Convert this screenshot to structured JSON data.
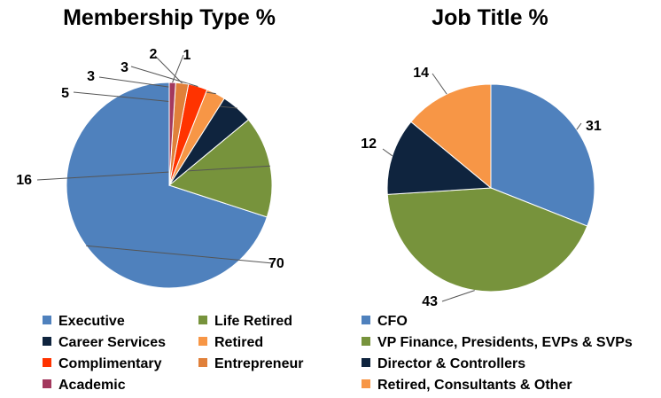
{
  "chart_data": [
    {
      "type": "pie",
      "title": "Membership Type %",
      "categories": [
        "Executive",
        "Life Retired",
        "Career Services",
        "Retired",
        "Complimentary",
        "Entrepreneur",
        "Academic"
      ],
      "values": [
        70,
        16,
        5,
        3,
        3,
        2,
        1
      ],
      "colors": [
        "#4F81BD",
        "#77933C",
        "#0F243E",
        "#F79646",
        "#FF3300",
        "#E0803A",
        "#A3395E"
      ],
      "legend_columns": 2,
      "legend_placement": "bottom"
    },
    {
      "type": "pie",
      "title": "Job Title %",
      "categories": [
        "CFO",
        "VP Finance, Presidents, EVPs & SVPs",
        "Director & Controllers",
        "Retired, Consultants & Other"
      ],
      "values": [
        31,
        43,
        12,
        14
      ],
      "colors": [
        "#4F81BD",
        "#77933C",
        "#0F243E",
        "#F79646"
      ],
      "legend_columns": 1,
      "legend_placement": "bottom"
    }
  ]
}
